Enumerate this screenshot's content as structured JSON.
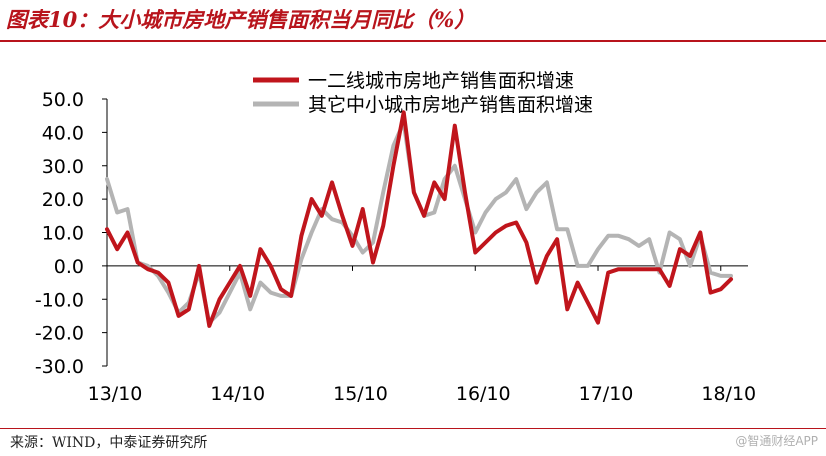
{
  "header": {
    "title": "图表10：大小城市房地产销售面积当月同比（%）"
  },
  "footer": {
    "source": "来源：WIND，中泰证券研究所",
    "watermark": "@智通财经APP"
  },
  "colors": {
    "series1": "#c0151c",
    "series2": "#b4b4b4",
    "accent": "#b8141c"
  },
  "chart_data": {
    "type": "line",
    "title": "图表10：大小城市房地产销售面积当月同比（%）",
    "xlabel": "",
    "ylabel": "",
    "ylim": [
      -30,
      50
    ],
    "y_ticks": [
      "50.0",
      "40.0",
      "30.0",
      "20.0",
      "10.0",
      "0.0",
      "-10.0",
      "-20.0",
      "-30.0"
    ],
    "y_tick_values": [
      50,
      40,
      30,
      20,
      10,
      0,
      -10,
      -20,
      -30
    ],
    "x_ticks": [
      "13/10",
      "14/10",
      "15/10",
      "16/10",
      "17/10",
      "18/10"
    ],
    "x_tick_values": [
      0,
      12,
      24,
      36,
      48,
      60
    ],
    "x_unit": "months since 13/10",
    "grid": false,
    "legend_position": "top-right",
    "series": [
      {
        "name": "一二线城市房地产销售面积增速",
        "values": [
          [
            0,
            11
          ],
          [
            1,
            5
          ],
          [
            2,
            10
          ],
          [
            3,
            1
          ],
          [
            4,
            -1
          ],
          [
            5,
            -2
          ],
          [
            6,
            -5
          ],
          [
            7,
            -15
          ],
          [
            8,
            -13
          ],
          [
            9,
            0
          ],
          [
            10,
            -18
          ],
          [
            11,
            -10
          ],
          [
            12,
            -5
          ],
          [
            13,
            0
          ],
          [
            14,
            -9
          ],
          [
            15,
            5
          ],
          [
            16,
            0
          ],
          [
            17,
            -7
          ],
          [
            18,
            -9
          ],
          [
            19,
            9
          ],
          [
            20,
            20
          ],
          [
            21,
            15
          ],
          [
            22,
            25
          ],
          [
            23,
            15
          ],
          [
            24,
            6
          ],
          [
            25,
            17
          ],
          [
            26,
            1
          ],
          [
            27,
            12
          ],
          [
            28,
            30
          ],
          [
            29,
            46
          ],
          [
            30,
            22
          ],
          [
            31,
            15
          ],
          [
            32,
            25
          ],
          [
            33,
            20
          ],
          [
            34,
            42
          ],
          [
            35,
            22
          ],
          [
            36,
            4
          ],
          [
            37,
            7
          ],
          [
            38,
            10
          ],
          [
            39,
            12
          ],
          [
            40,
            13
          ],
          [
            41,
            7
          ],
          [
            42,
            -5
          ],
          [
            43,
            3
          ],
          [
            44,
            8
          ],
          [
            45,
            -13
          ],
          [
            46,
            -5
          ],
          [
            47,
            -11
          ],
          [
            48,
            -17
          ],
          [
            49,
            -2
          ],
          [
            50,
            -1
          ],
          [
            51,
            -1
          ],
          [
            52,
            -1
          ],
          [
            53,
            -1
          ],
          [
            54,
            -1
          ],
          [
            55,
            -6
          ],
          [
            56,
            5
          ],
          [
            57,
            3
          ],
          [
            58,
            10
          ],
          [
            59,
            -8
          ],
          [
            60,
            -7
          ],
          [
            61,
            -4
          ]
        ]
      },
      {
        "name": "其它中小城市房地产销售面积增速",
        "values": [
          [
            0,
            26
          ],
          [
            1,
            16
          ],
          [
            2,
            17
          ],
          [
            3,
            1
          ],
          [
            4,
            0
          ],
          [
            5,
            -3
          ],
          [
            6,
            -8
          ],
          [
            7,
            -14
          ],
          [
            8,
            -11
          ],
          [
            9,
            -2
          ],
          [
            10,
            -17
          ],
          [
            11,
            -14
          ],
          [
            12,
            -8
          ],
          [
            13,
            -2
          ],
          [
            14,
            -13
          ],
          [
            15,
            -5
          ],
          [
            16,
            -8
          ],
          [
            17,
            -9
          ],
          [
            18,
            -9
          ],
          [
            19,
            2
          ],
          [
            20,
            10
          ],
          [
            21,
            17
          ],
          [
            22,
            14
          ],
          [
            23,
            13
          ],
          [
            24,
            9
          ],
          [
            25,
            4
          ],
          [
            26,
            7
          ],
          [
            27,
            22
          ],
          [
            28,
            36
          ],
          [
            29,
            43
          ],
          [
            30,
            22
          ],
          [
            31,
            15
          ],
          [
            32,
            16
          ],
          [
            33,
            26
          ],
          [
            34,
            30
          ],
          [
            35,
            20
          ],
          [
            36,
            10
          ],
          [
            37,
            16
          ],
          [
            38,
            20
          ],
          [
            39,
            22
          ],
          [
            40,
            26
          ],
          [
            41,
            17
          ],
          [
            42,
            22
          ],
          [
            43,
            25
          ],
          [
            44,
            11
          ],
          [
            45,
            11
          ],
          [
            46,
            0
          ],
          [
            47,
            0
          ],
          [
            48,
            5
          ],
          [
            49,
            9
          ],
          [
            50,
            9
          ],
          [
            51,
            8
          ],
          [
            52,
            6
          ],
          [
            53,
            8
          ],
          [
            54,
            -2
          ],
          [
            55,
            10
          ],
          [
            56,
            8
          ],
          [
            57,
            0
          ],
          [
            58,
            9
          ],
          [
            59,
            -2
          ],
          [
            60,
            -3
          ],
          [
            61,
            -3
          ]
        ]
      }
    ]
  }
}
